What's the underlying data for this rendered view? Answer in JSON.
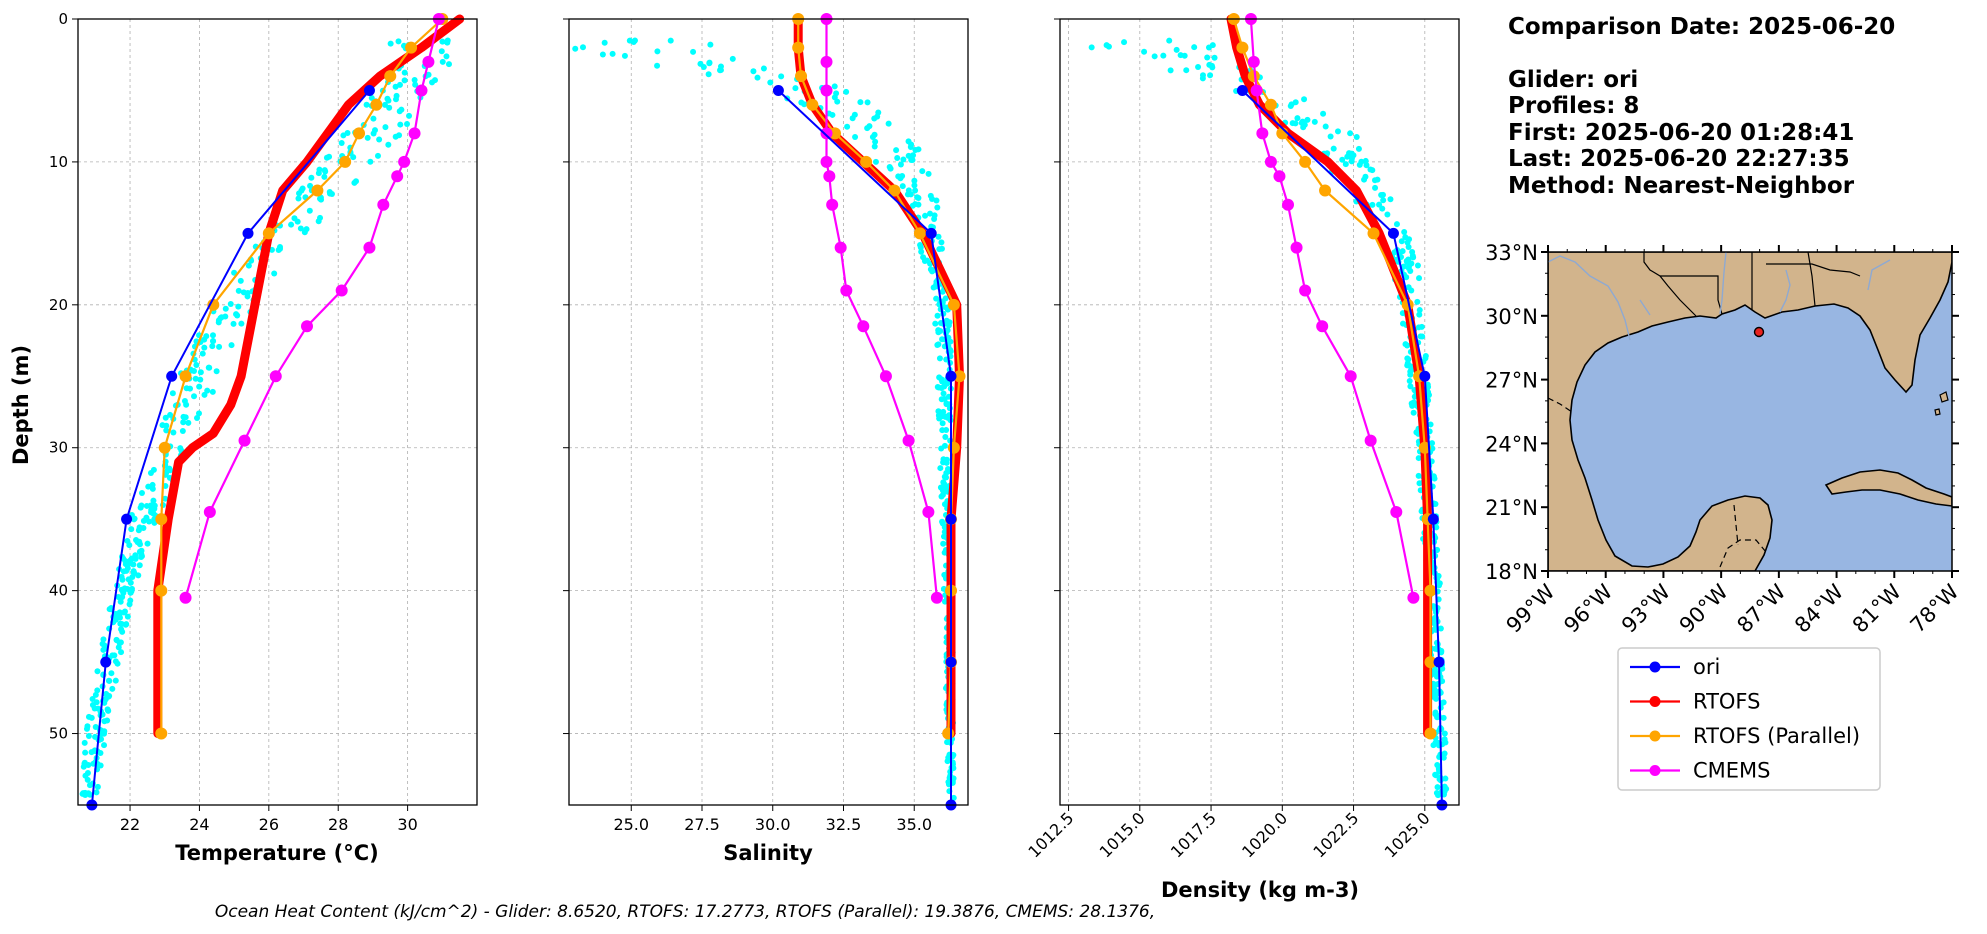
{
  "info_panel": {
    "comparison_date": "Comparison Date: 2025-06-20",
    "glider": "Glider: ori",
    "profiles": "Profiles: 8",
    "first": "First: 2025-06-20 01:28:41",
    "last": "Last: 2025-06-20 22:27:35",
    "method": "Method: Nearest-Neighbor"
  },
  "footer": "Ocean Heat Content (kJ/cm^2) - Glider: 8.6520,  RTOFS: 17.2773,  RTOFS (Parallel): 19.3876,  CMEMS: 28.1376,",
  "colors": {
    "glider_raw": "#00ffff",
    "ori": "#0000ff",
    "rtofs": "#ff0000",
    "rtofs_parallel": "#ffa500",
    "cmems": "#ff00ff",
    "land": "#d2b48c",
    "ocean": "#98b6e2"
  },
  "chart_data": [
    {
      "type": "line",
      "panel": "temperature",
      "xlabel": "Temperature (°C)",
      "ylabel": "Depth (m)",
      "xlim": [
        20.5,
        32.0
      ],
      "ylim": [
        55,
        0
      ],
      "xticks": [
        22,
        24,
        26,
        28,
        30
      ],
      "yticks": [
        0,
        10,
        20,
        30,
        40,
        50
      ],
      "grid": true,
      "series": [
        {
          "name": "ori",
          "x": [
            28.9,
            25.4,
            23.2,
            21.9,
            21.3,
            20.9
          ],
          "y": [
            5,
            15,
            25,
            35,
            45,
            55
          ]
        },
        {
          "name": "RTOFS",
          "x": [
            31.5,
            30.4,
            29.2,
            28.3,
            27.7,
            27.1,
            26.4,
            26.0,
            25.6,
            25.2,
            24.9,
            24.4,
            23.8,
            23.4,
            23.1,
            22.8,
            22.8,
            22.8,
            22.8
          ],
          "y": [
            0,
            2,
            4,
            6,
            8,
            10,
            12,
            15,
            20,
            25,
            27,
            29,
            30,
            31,
            35,
            40,
            45,
            50,
            50
          ]
        },
        {
          "name": "RTOFS (Parallel)",
          "x": [
            31.0,
            30.1,
            29.5,
            29.1,
            28.6,
            28.2,
            27.4,
            26.0,
            24.4,
            23.6,
            23.0,
            22.9,
            22.9,
            22.9
          ],
          "y": [
            0,
            2,
            4,
            6,
            8,
            10,
            12,
            15,
            20,
            25,
            30,
            35,
            40,
            50
          ]
        },
        {
          "name": "CMEMS",
          "x": [
            30.9,
            30.6,
            30.4,
            30.2,
            29.9,
            29.7,
            29.3,
            28.9,
            28.1,
            27.1,
            26.2,
            25.3,
            24.3,
            23.6
          ],
          "y": [
            0,
            3,
            5,
            8,
            10,
            11,
            13,
            16,
            19,
            21.5,
            25,
            29.5,
            34.5,
            40.5
          ]
        }
      ]
    },
    {
      "type": "line",
      "panel": "salinity",
      "xlabel": "Salinity",
      "xlim": [
        22.8,
        36.9
      ],
      "ylim": [
        55,
        0
      ],
      "xticks": [
        25.0,
        27.5,
        30.0,
        32.5,
        35.0
      ],
      "xticklabels": [
        "25.0",
        "27.5",
        "30.0",
        "32.5",
        "35.0"
      ],
      "grid": true,
      "series": [
        {
          "name": "ori",
          "x": [
            30.2,
            35.6,
            36.3,
            36.3,
            36.3,
            36.3
          ],
          "y": [
            5,
            15,
            25,
            35,
            45,
            55
          ]
        },
        {
          "name": "RTOFS",
          "x": [
            30.9,
            30.9,
            31.0,
            31.4,
            32.1,
            33.2,
            34.3,
            35.3,
            36.5,
            36.6,
            36.5,
            36.3,
            36.3,
            36.3
          ],
          "y": [
            0,
            2,
            4,
            6,
            8,
            10,
            12,
            15,
            20,
            25,
            30,
            35,
            40,
            50
          ]
        },
        {
          "name": "RTOFS (Parallel)",
          "x": [
            30.9,
            30.9,
            31.0,
            31.4,
            32.2,
            33.3,
            34.3,
            35.2,
            36.4,
            36.6,
            36.4,
            36.3,
            36.3,
            36.3,
            36.2
          ],
          "y": [
            0,
            2,
            4,
            6,
            8,
            10,
            12,
            15,
            20,
            25,
            30,
            35,
            40,
            45,
            50
          ]
        },
        {
          "name": "CMEMS",
          "x": [
            31.9,
            31.9,
            31.9,
            31.9,
            31.9,
            32.0,
            32.1,
            32.4,
            32.6,
            33.2,
            34.0,
            34.8,
            35.5,
            35.8
          ],
          "y": [
            0,
            3,
            5,
            8,
            10,
            11,
            13,
            16,
            19,
            21.5,
            25,
            29.5,
            34.5,
            40.5
          ]
        }
      ]
    },
    {
      "type": "line",
      "panel": "density",
      "xlabel": "Density (kg m-3)",
      "xlim": [
        1012.2,
        1026.2
      ],
      "ylim": [
        55,
        0
      ],
      "xticks": [
        1012.5,
        1015.0,
        1017.5,
        1020.0,
        1022.5,
        1025.0
      ],
      "xticklabels": [
        "1012.5",
        "1015.0",
        "1017.5",
        "1020.0",
        "1022.5",
        "1025.0"
      ],
      "grid": true,
      "series": [
        {
          "name": "ori",
          "x": [
            1018.6,
            1023.9,
            1025.0,
            1025.3,
            1025.5,
            1025.6
          ],
          "y": [
            5,
            15,
            25,
            35,
            45,
            55
          ]
        },
        {
          "name": "RTOFS",
          "x": [
            1018.2,
            1018.4,
            1018.7,
            1019.2,
            1020.2,
            1021.6,
            1022.6,
            1023.4,
            1024.4,
            1024.8,
            1025.0,
            1025.1,
            1025.1,
            1025.1
          ],
          "y": [
            0,
            2,
            4,
            6,
            8,
            10,
            12,
            15,
            20,
            25,
            30,
            35,
            40,
            50
          ]
        },
        {
          "name": "RTOFS (Parallel)",
          "x": [
            1018.3,
            1018.6,
            1019.0,
            1019.6,
            1020.0,
            1020.8,
            1021.5,
            1023.2,
            1024.4,
            1024.8,
            1025.0,
            1025.1,
            1025.2,
            1025.2,
            1025.2
          ],
          "y": [
            0,
            2,
            4,
            6,
            8,
            10,
            12,
            15,
            20,
            25,
            30,
            35,
            40,
            45,
            50
          ]
        },
        {
          "name": "CMEMS",
          "x": [
            1018.9,
            1019.0,
            1019.1,
            1019.3,
            1019.6,
            1019.9,
            1020.2,
            1020.5,
            1020.8,
            1021.4,
            1022.4,
            1023.1,
            1024.0,
            1024.6
          ],
          "y": [
            0,
            3,
            5,
            8,
            10,
            11,
            13,
            16,
            19,
            21.5,
            25,
            29.5,
            34.5,
            40.5
          ]
        }
      ]
    }
  ],
  "map": {
    "lat_ticks": [
      "33°N",
      "30°N",
      "27°N",
      "24°N",
      "21°N",
      "18°N"
    ],
    "lon_ticks": [
      "99°W",
      "96°W",
      "93°W",
      "90°W",
      "87°W",
      "84°W",
      "81°W",
      "78°W"
    ],
    "glider_location": {
      "lon": -88.6,
      "lat": 29.5
    }
  },
  "legend": {
    "placement": "below map",
    "entries": [
      {
        "label": "ori",
        "color": "#0000ff"
      },
      {
        "label": "RTOFS",
        "color": "#ff0000"
      },
      {
        "label": "RTOFS (Parallel)",
        "color": "#ffa500"
      },
      {
        "label": "CMEMS",
        "color": "#ff00ff"
      }
    ]
  }
}
